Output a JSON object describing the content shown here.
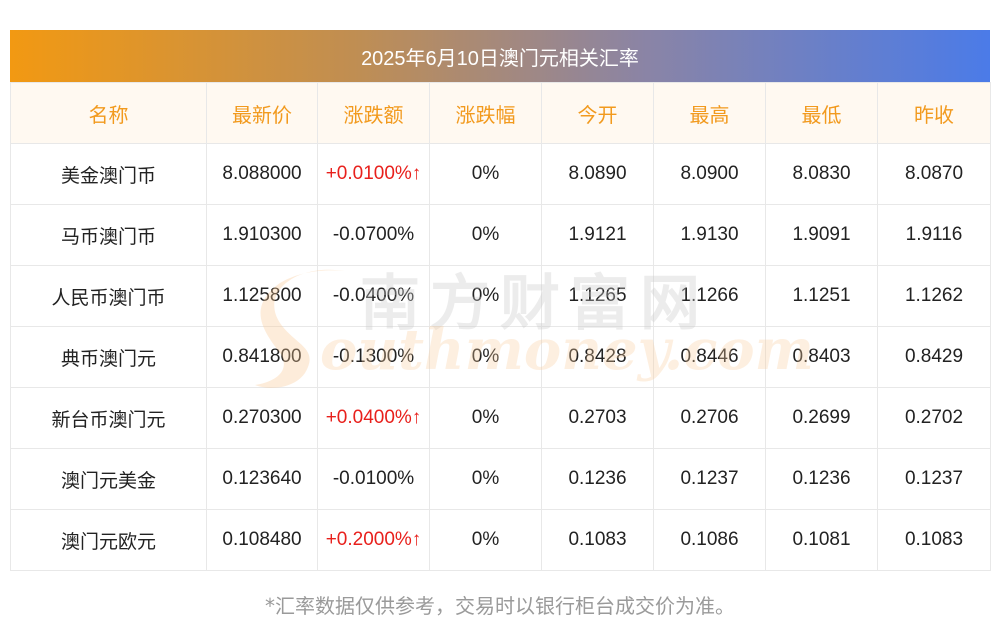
{
  "title": "2025年6月10日澳门元相关汇率",
  "headers": [
    "名称",
    "最新价",
    "涨跌额",
    "涨跌幅",
    "今开",
    "最高",
    "最低",
    "昨收"
  ],
  "rows": [
    {
      "name": "美金澳门币",
      "latest": "8.088000",
      "change": "+0.0100%↑",
      "change_dir": "up",
      "pct": "0%",
      "open": "8.0890",
      "high": "8.0900",
      "low": "8.0830",
      "prev_close": "8.0870"
    },
    {
      "name": "马币澳门币",
      "latest": "1.910300",
      "change": "-0.0700%",
      "change_dir": "down",
      "pct": "0%",
      "open": "1.9121",
      "high": "1.9130",
      "low": "1.9091",
      "prev_close": "1.9116"
    },
    {
      "name": "人民币澳门币",
      "latest": "1.125800",
      "change": "-0.0400%",
      "change_dir": "down",
      "pct": "0%",
      "open": "1.1265",
      "high": "1.1266",
      "low": "1.1251",
      "prev_close": "1.1262"
    },
    {
      "name": "典币澳门元",
      "latest": "0.841800",
      "change": "-0.1300%",
      "change_dir": "down",
      "pct": "0%",
      "open": "0.8428",
      "high": "0.8446",
      "low": "0.8403",
      "prev_close": "0.8429"
    },
    {
      "name": "新台币澳门元",
      "latest": "0.270300",
      "change": "+0.0400%↑",
      "change_dir": "up",
      "pct": "0%",
      "open": "0.2703",
      "high": "0.2706",
      "low": "0.2699",
      "prev_close": "0.2702"
    },
    {
      "name": "澳门元美金",
      "latest": "0.123640",
      "change": "-0.0100%",
      "change_dir": "down",
      "pct": "0%",
      "open": "0.1236",
      "high": "0.1237",
      "low": "0.1236",
      "prev_close": "0.1237"
    },
    {
      "name": "澳门元欧元",
      "latest": "0.108480",
      "change": "+0.2000%↑",
      "change_dir": "up",
      "pct": "0%",
      "open": "0.1083",
      "high": "0.1086",
      "low": "0.1081",
      "prev_close": "0.1083"
    }
  ],
  "watermark": {
    "cn": "南方财富网",
    "en": "outhmoney.com"
  },
  "footnote": "*汇率数据仅供参考，交易时以银行柜台成交价为准。",
  "colors": {
    "header_text": "#f29a1e",
    "up": "#e8201c",
    "title_start": "#f29912",
    "title_end": "#4b7be8"
  }
}
